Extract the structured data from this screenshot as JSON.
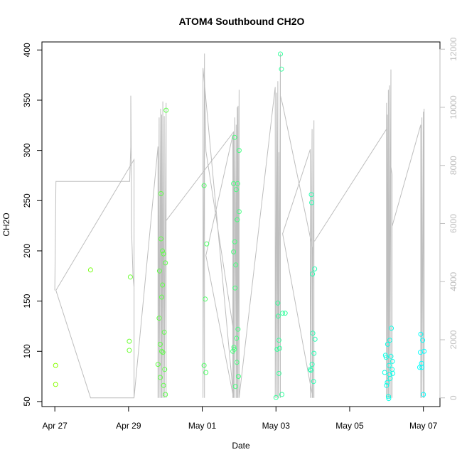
{
  "chart_data": {
    "type": "scatter",
    "title": "ATOM4 Southbound CH2O",
    "xlabel": "Date",
    "ylabel": "CH2O",
    "x_ticks": [
      "Apr 27",
      "Apr 29",
      "May 01",
      "May 03",
      "May 05",
      "May 07"
    ],
    "x_tick_values": [
      0,
      2,
      4,
      6,
      8,
      10
    ],
    "xlim": [
      -0.35,
      10.45
    ],
    "y_ticks": [
      50,
      100,
      150,
      200,
      250,
      300,
      350,
      400
    ],
    "ylim": [
      45,
      408
    ],
    "y2_ticks": [
      0,
      2000,
      4000,
      6000,
      8000,
      10000,
      12000
    ],
    "y2lim": [
      -300,
      12250
    ],
    "colors": {
      "line": "#bebebe",
      "right_axis": "#bebebe",
      "points_start": "#88ff00",
      "points_end": "#00ffff"
    },
    "points": [
      [
        0.02,
        86
      ],
      [
        0.02,
        67
      ],
      [
        0.97,
        181
      ],
      [
        2.05,
        174
      ],
      [
        2.02,
        110
      ],
      [
        2.02,
        101
      ],
      [
        2.8,
        87
      ],
      [
        2.83,
        133
      ],
      [
        2.84,
        180
      ],
      [
        2.86,
        107
      ],
      [
        2.86,
        74
      ],
      [
        2.88,
        257
      ],
      [
        2.88,
        212
      ],
      [
        2.9,
        154
      ],
      [
        2.9,
        100
      ],
      [
        2.92,
        200
      ],
      [
        2.92,
        166
      ],
      [
        2.93,
        99
      ],
      [
        2.95,
        197
      ],
      [
        2.95,
        66
      ],
      [
        2.97,
        119
      ],
      [
        2.98,
        82
      ],
      [
        3.0,
        57
      ],
      [
        3.0,
        188
      ],
      [
        3.02,
        340
      ],
      [
        4.05,
        265
      ],
      [
        4.05,
        86
      ],
      [
        4.08,
        152
      ],
      [
        4.1,
        79
      ],
      [
        4.12,
        207
      ],
      [
        4.83,
        100
      ],
      [
        4.85,
        267
      ],
      [
        4.85,
        199
      ],
      [
        4.86,
        104
      ],
      [
        4.87,
        102
      ],
      [
        4.88,
        313
      ],
      [
        4.88,
        209
      ],
      [
        4.89,
        163
      ],
      [
        4.9,
        65
      ],
      [
        4.91,
        186
      ],
      [
        4.92,
        261
      ],
      [
        4.93,
        113
      ],
      [
        4.94,
        89
      ],
      [
        4.95,
        231
      ],
      [
        4.96,
        267
      ],
      [
        4.97,
        122
      ],
      [
        4.98,
        75
      ],
      [
        5.0,
        300
      ],
      [
        5.0,
        239
      ],
      [
        6.0,
        54
      ],
      [
        6.03,
        102
      ],
      [
        6.05,
        148
      ],
      [
        6.06,
        135
      ],
      [
        6.08,
        111
      ],
      [
        6.08,
        78
      ],
      [
        6.1,
        103
      ],
      [
        6.12,
        396
      ],
      [
        6.15,
        381
      ],
      [
        6.16,
        57
      ],
      [
        6.18,
        138
      ],
      [
        6.25,
        138
      ],
      [
        6.93,
        82
      ],
      [
        6.95,
        81
      ],
      [
        6.96,
        256
      ],
      [
        6.97,
        248
      ],
      [
        6.98,
        87
      ],
      [
        6.99,
        177
      ],
      [
        7.0,
        118
      ],
      [
        7.02,
        70
      ],
      [
        7.03,
        98
      ],
      [
        7.05,
        182
      ],
      [
        7.06,
        112
      ],
      [
        8.95,
        79
      ],
      [
        8.97,
        96
      ],
      [
        8.99,
        94
      ],
      [
        9.0,
        66
      ],
      [
        9.02,
        69
      ],
      [
        9.03,
        107
      ],
      [
        9.05,
        55
      ],
      [
        9.06,
        53
      ],
      [
        9.07,
        86
      ],
      [
        9.08,
        77
      ],
      [
        9.09,
        111
      ],
      [
        9.1,
        73
      ],
      [
        9.12,
        95
      ],
      [
        9.13,
        123
      ],
      [
        9.15,
        82
      ],
      [
        9.16,
        90
      ],
      [
        9.17,
        78
      ],
      [
        9.9,
        84
      ],
      [
        9.92,
        99
      ],
      [
        9.93,
        117
      ],
      [
        9.95,
        88
      ],
      [
        9.96,
        84
      ],
      [
        9.98,
        111
      ],
      [
        10.0,
        57
      ],
      [
        10.02,
        100
      ]
    ],
    "line_path": [
      [
        0.0,
        3700
      ],
      [
        0.03,
        7450
      ],
      [
        2.03,
        7450
      ],
      [
        2.06,
        8650
      ],
      [
        2.06,
        10400
      ],
      [
        2.08,
        7200
      ],
      [
        2.08,
        5850
      ],
      [
        2.12,
        4200
      ],
      [
        2.15,
        3800
      ],
      [
        2.15,
        0
      ],
      [
        0.97,
        0
      ],
      [
        0.03,
        3700
      ],
      [
        2.15,
        8200
      ],
      [
        2.15,
        5950
      ],
      [
        2.15,
        0
      ],
      [
        2.8,
        8650
      ],
      [
        2.8,
        1000
      ],
      [
        2.8,
        0
      ],
      [
        2.83,
        9650
      ],
      [
        2.83,
        0
      ],
      [
        2.87,
        9950
      ],
      [
        2.87,
        0
      ],
      [
        2.9,
        9750
      ],
      [
        2.9,
        0
      ],
      [
        2.93,
        10200
      ],
      [
        2.93,
        0
      ],
      [
        2.97,
        9700
      ],
      [
        2.97,
        0
      ],
      [
        3.02,
        10150
      ],
      [
        3.02,
        0
      ],
      [
        3.02,
        6100
      ],
      [
        4.85,
        9150
      ],
      [
        4.85,
        0
      ],
      [
        4.02,
        11350
      ],
      [
        4.02,
        0
      ],
      [
        4.06,
        11850
      ],
      [
        4.06,
        0
      ],
      [
        4.06,
        11100
      ],
      [
        4.1,
        8500
      ],
      [
        4.85,
        2300
      ],
      [
        4.85,
        0
      ],
      [
        4.1,
        4900
      ],
      [
        4.83,
        9050
      ],
      [
        4.83,
        0
      ],
      [
        4.88,
        9650
      ],
      [
        4.88,
        0
      ],
      [
        4.92,
        9400
      ],
      [
        4.92,
        0
      ],
      [
        4.95,
        10000
      ],
      [
        4.95,
        0
      ],
      [
        4.97,
        10050
      ],
      [
        4.97,
        0
      ],
      [
        5.0,
        10600
      ],
      [
        5.0,
        0
      ],
      [
        5.98,
        10700
      ],
      [
        5.98,
        0
      ],
      [
        6.02,
        10500
      ],
      [
        6.02,
        0
      ],
      [
        6.05,
        10900
      ],
      [
        6.05,
        0
      ],
      [
        6.08,
        8450
      ],
      [
        6.08,
        0
      ],
      [
        6.12,
        11850
      ],
      [
        6.12,
        0
      ],
      [
        6.12,
        10400
      ],
      [
        6.18,
        10100
      ],
      [
        7.0,
        5100
      ],
      [
        7.0,
        0
      ],
      [
        6.18,
        5650
      ],
      [
        6.93,
        8550
      ],
      [
        6.93,
        0
      ],
      [
        6.98,
        9250
      ],
      [
        6.98,
        0
      ],
      [
        7.03,
        9550
      ],
      [
        7.03,
        0
      ],
      [
        7.03,
        5400
      ],
      [
        7.05,
        5400
      ],
      [
        9.0,
        9250
      ],
      [
        9.0,
        0
      ],
      [
        9.0,
        10150
      ],
      [
        9.0,
        0
      ],
      [
        9.02,
        9750
      ],
      [
        9.02,
        0
      ],
      [
        9.05,
        10600
      ],
      [
        9.05,
        0
      ],
      [
        9.08,
        10750
      ],
      [
        9.08,
        0
      ],
      [
        9.12,
        11300
      ],
      [
        9.12,
        0
      ],
      [
        9.12,
        7950
      ],
      [
        9.15,
        7700
      ],
      [
        9.15,
        0
      ],
      [
        9.15,
        5900
      ],
      [
        9.93,
        9400
      ],
      [
        9.93,
        0
      ],
      [
        9.96,
        9650
      ],
      [
        9.96,
        0
      ],
      [
        10.0,
        9850
      ],
      [
        10.0,
        0
      ],
      [
        10.02,
        9950
      ],
      [
        10.02,
        0
      ]
    ]
  }
}
